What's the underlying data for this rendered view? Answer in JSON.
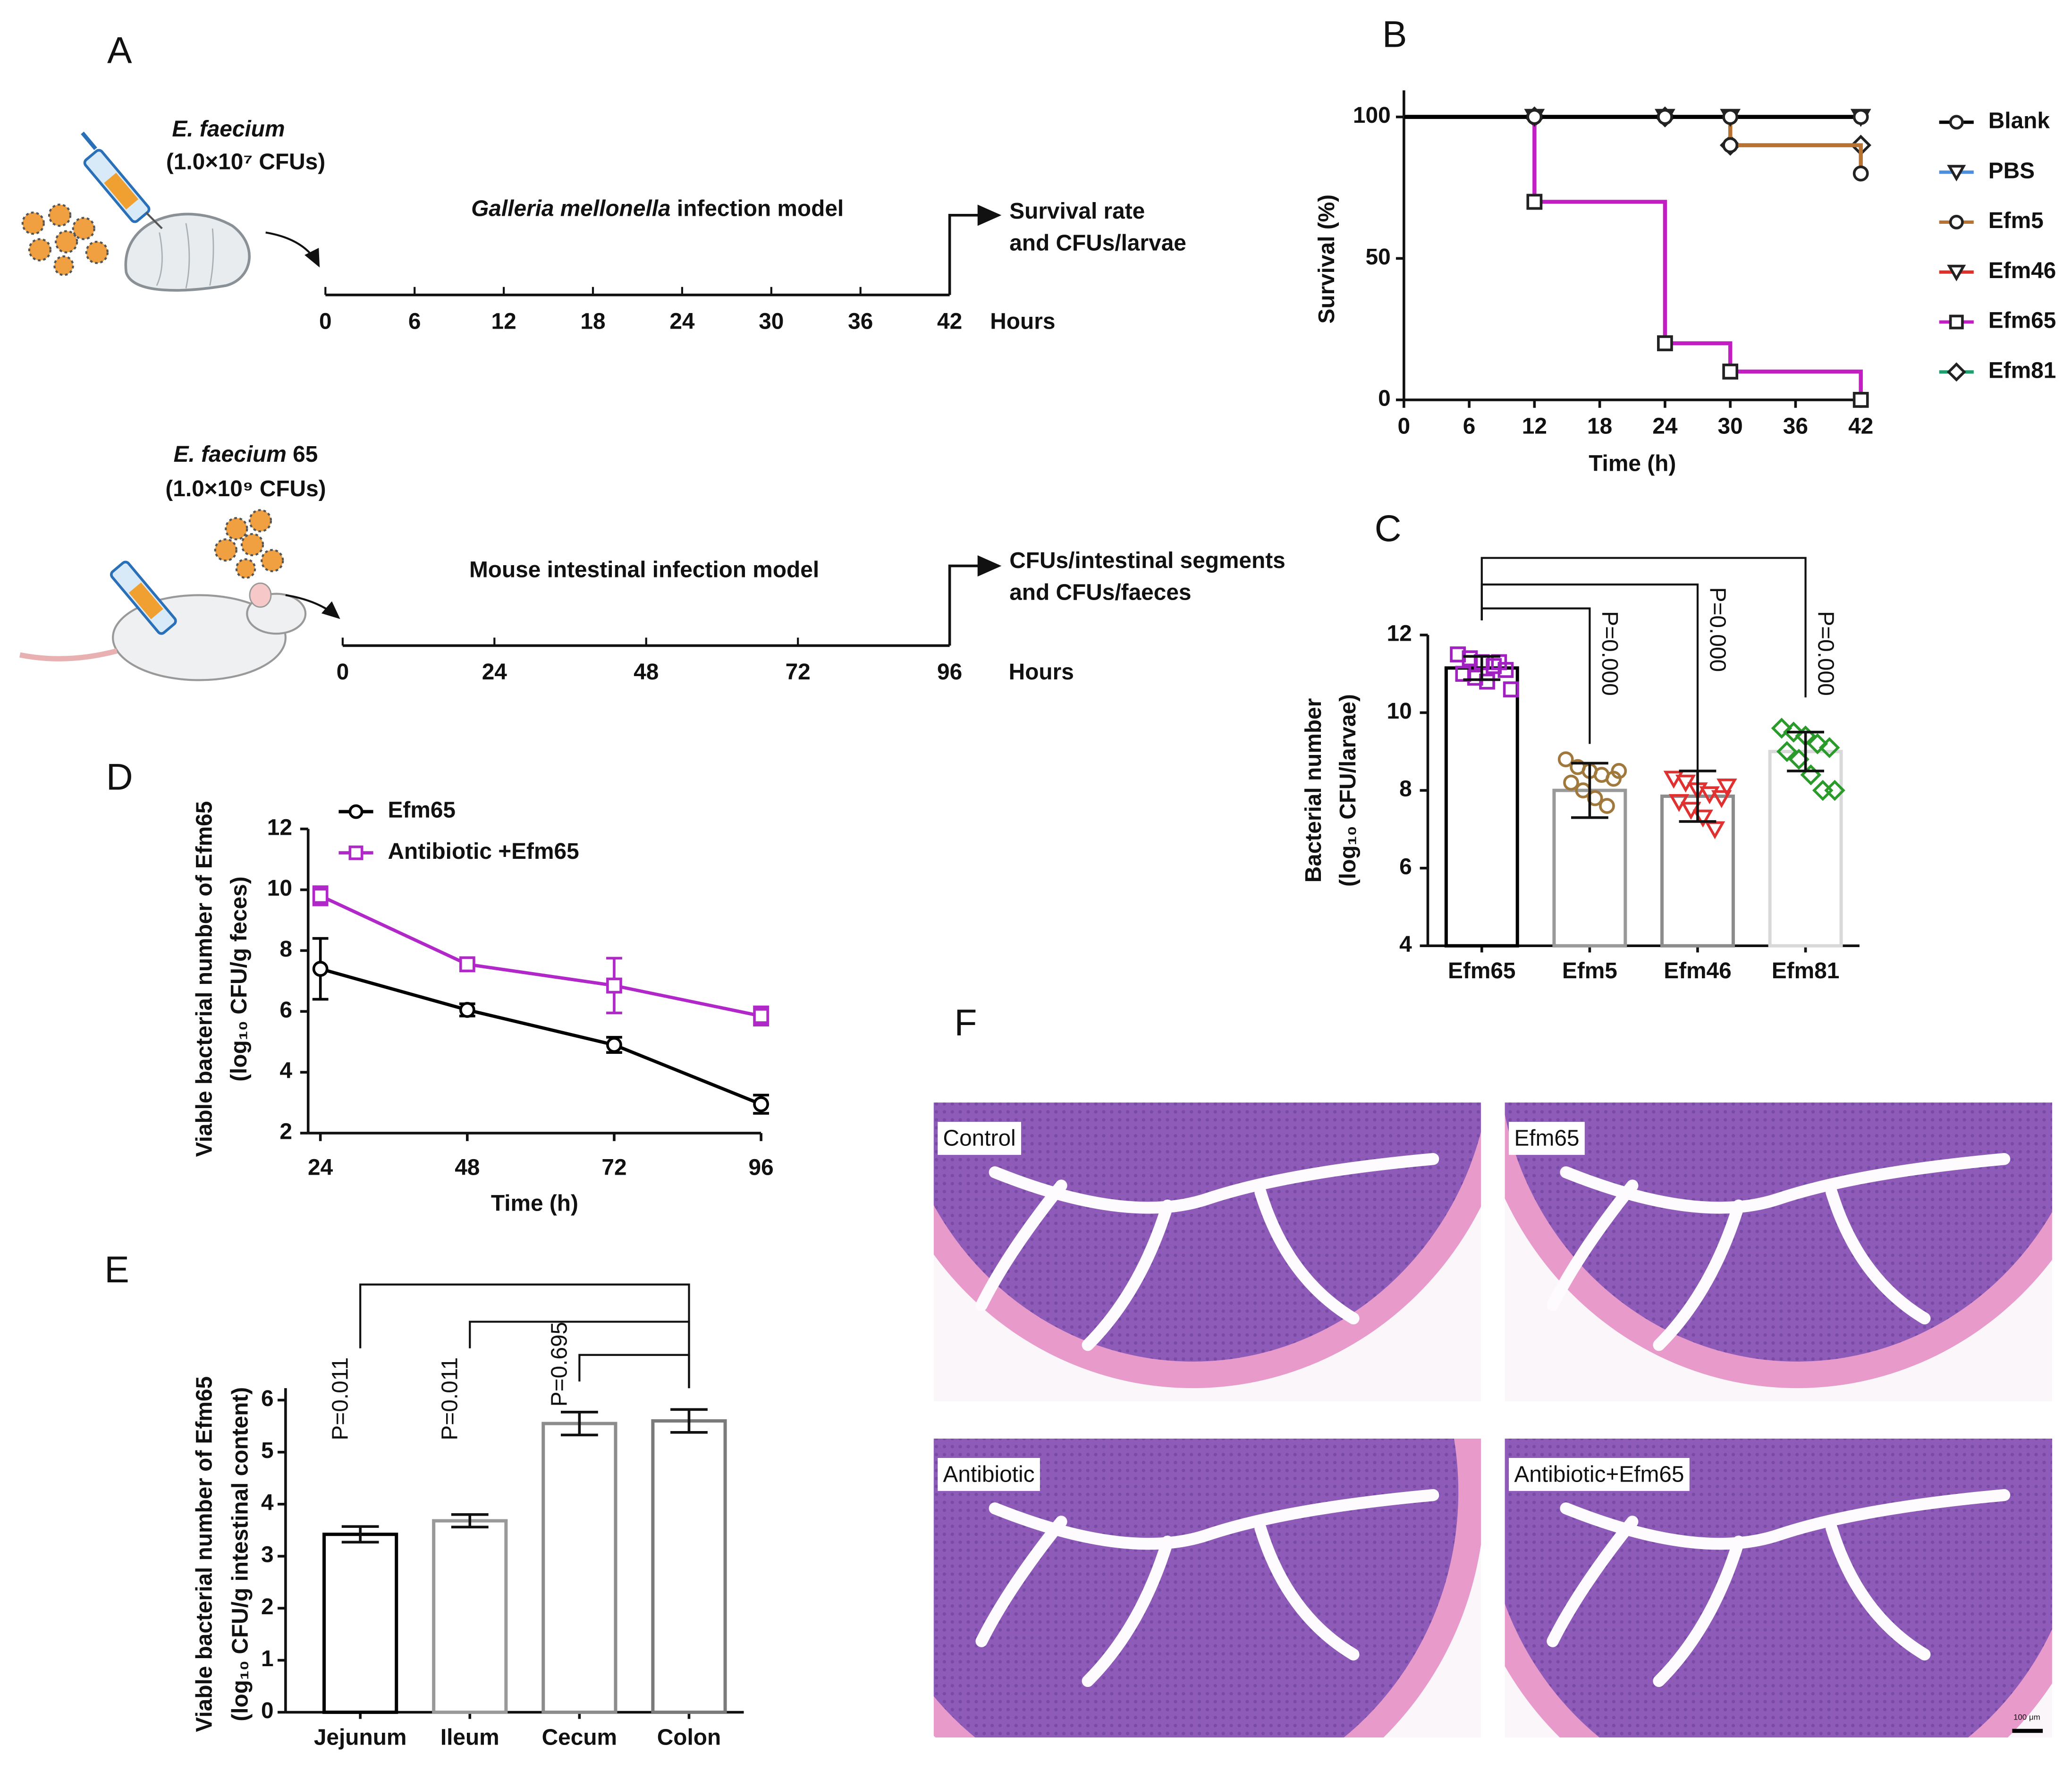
{
  "panel_labels": [
    "A",
    "B",
    "C",
    "D",
    "E",
    "F"
  ],
  "schematic": {
    "timelines": [
      {
        "organism": "E. faecium",
        "dose": "(1.0×10⁷ CFUs)",
        "model_italic": "Galleria mellonella",
        "model": " infection model",
        "ticks": [
          0,
          6,
          12,
          18,
          24,
          30,
          36,
          42
        ],
        "unit": "Hours",
        "outcome": [
          "Survival rate",
          "and CFUs/larvae"
        ]
      },
      {
        "organism": "E. faecium",
        "organism_suffix": " 65",
        "dose": "(1.0×10⁹ CFUs)",
        "model": "Mouse intestinal infection model",
        "ticks": [
          0,
          24,
          48,
          72,
          96
        ],
        "unit": "Hours",
        "outcome": [
          "CFUs/intestinal segments",
          "and CFUs/faeces"
        ]
      }
    ]
  },
  "chart_data": [
    {
      "type": "line",
      "step": true,
      "ylabel": [
        "Survival (%)"
      ],
      "xlabel": "Time (h)",
      "x": [
        0,
        12,
        24,
        30,
        42
      ],
      "xlim": [
        0,
        42
      ],
      "xticks": [
        0,
        6,
        12,
        18,
        24,
        30,
        36,
        42
      ],
      "ylim": [
        0,
        100
      ],
      "yticks": [
        0,
        50,
        100
      ],
      "legend": "right",
      "series": [
        {
          "name": "Blank",
          "color": "#000000",
          "marker": "circle",
          "values": [
            100,
            100,
            100,
            100,
            100
          ]
        },
        {
          "name": "PBS",
          "color": "#4a90e2",
          "marker": "triangle-down",
          "values": [
            100,
            100,
            100,
            100,
            100
          ]
        },
        {
          "name": "Efm5",
          "color": "#b87333",
          "marker": "circle",
          "values": [
            100,
            100,
            100,
            90,
            80
          ]
        },
        {
          "name": "Efm46",
          "color": "#e0302a",
          "marker": "triangle-down",
          "values": [
            100,
            100,
            100,
            100,
            100
          ]
        },
        {
          "name": "Efm65",
          "color": "#c21fc2",
          "marker": "square",
          "values": [
            100,
            70,
            20,
            10,
            0
          ]
        },
        {
          "name": "Efm81",
          "color": "#1f9e6e",
          "marker": "diamond",
          "values": [
            100,
            100,
            100,
            90,
            90
          ]
        }
      ]
    },
    {
      "type": "bar",
      "ylabel": [
        "Bacterial number",
        "(log₁₀ CFU/larvae)"
      ],
      "categories": [
        "Efm65",
        "Efm5",
        "Efm46",
        "Efm81"
      ],
      "values": [
        11.15,
        8.0,
        7.85,
        9.0
      ],
      "errors": [
        0.3,
        0.7,
        0.65,
        0.5
      ],
      "bar_colors": [
        "#000000",
        "#999999",
        "#8c8c8c",
        "#d9d9d9"
      ],
      "points": [
        [
          11.5,
          11.4,
          11.3,
          11.2,
          11.1,
          11.0,
          10.9,
          10.8,
          11.3,
          10.6
        ],
        [
          8.8,
          8.6,
          8.5,
          8.4,
          8.3,
          8.2,
          8.0,
          7.8,
          7.6,
          8.5
        ],
        [
          8.3,
          8.2,
          8.0,
          7.9,
          7.8,
          7.7,
          7.5,
          7.3,
          7.0,
          8.1
        ],
        [
          9.6,
          9.5,
          9.4,
          9.2,
          9.1,
          9.0,
          8.8,
          8.4,
          8.0,
          8.0
        ]
      ],
      "point_colors": [
        "#a020c0",
        "#a0783c",
        "#e03030",
        "#2a9a2a"
      ],
      "point_markers": [
        "square",
        "circle",
        "triangle-down",
        "diamond"
      ],
      "ylim": [
        4,
        12
      ],
      "yticks": [
        4,
        6,
        8,
        10,
        12
      ],
      "annotations": [
        "P=0.000",
        "P=0.000",
        "P=0.000"
      ]
    },
    {
      "type": "line",
      "ylabel": [
        "Viable bacterial number of Efm65",
        "(log₁₀ CFU/g feces)"
      ],
      "xlabel": "Time (h)",
      "x": [
        24,
        48,
        72,
        96
      ],
      "xlim": [
        22,
        96
      ],
      "xticks": [
        24,
        48,
        72,
        96
      ],
      "ylim": [
        2,
        12
      ],
      "yticks": [
        2,
        4,
        6,
        8,
        10,
        12
      ],
      "legend": "upper left",
      "series": [
        {
          "name": "Efm65",
          "color": "#000000",
          "marker": "circle",
          "values": [
            7.4,
            6.05,
            4.9,
            2.95
          ],
          "errors": [
            1.0,
            0.2,
            0.25,
            0.3
          ]
        },
        {
          "name": "Antibiotic +Efm65",
          "color": "#b028c8",
          "marker": "square",
          "values": [
            9.8,
            7.55,
            6.85,
            5.85
          ],
          "errors": [
            0.3,
            0.1,
            0.9,
            0.3
          ]
        }
      ]
    },
    {
      "type": "bar",
      "ylabel": [
        "Viable bacterial number of Efm65",
        "(log₁₀ CFU/g intestinal content)"
      ],
      "categories": [
        "Jejunum",
        "Ileum",
        "Cecum",
        "Colon"
      ],
      "values": [
        3.42,
        3.68,
        5.55,
        5.6
      ],
      "errors": [
        0.15,
        0.12,
        0.22,
        0.22
      ],
      "bar_colors": [
        "#000000",
        "#999999",
        "#8c8c8c",
        "#7a7a7a"
      ],
      "ylim": [
        0,
        6
      ],
      "yticks": [
        0,
        1,
        2,
        3,
        4,
        5,
        6
      ],
      "annotations": [
        "P=0.011",
        "P=0.011",
        "P=0.695"
      ]
    }
  ],
  "histology": {
    "labels": [
      "Control",
      "Efm65",
      "Antibiotic",
      "Antibiotic+Efm65"
    ],
    "scale_bar": "100 μm"
  }
}
